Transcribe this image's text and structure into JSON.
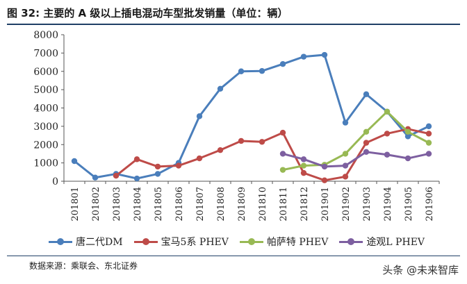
{
  "figure": {
    "title": "图  32:  主要的 A 级以上插电混动车型批发销量（单位：辆）",
    "source": "数据来源：乘联会、东北证券",
    "watermark": "头条 @未来智库"
  },
  "chart_data": {
    "type": "line",
    "xlabel": "",
    "ylabel": "",
    "ylim": [
      0,
      8000
    ],
    "yticks": [
      0,
      1000,
      2000,
      3000,
      4000,
      5000,
      6000,
      7000,
      8000
    ],
    "grid": false,
    "legend_position": "bottom",
    "categories": [
      "201801",
      "201802",
      "201803",
      "201804",
      "201805",
      "201806",
      "201807",
      "201808",
      "201809",
      "201810",
      "201811",
      "201812",
      "201901",
      "201902",
      "201903",
      "201904",
      "201905",
      "201906"
    ],
    "series": [
      {
        "name": "唐二代DM",
        "color": "#4a7ebb",
        "values": [
          1100,
          200,
          400,
          150,
          400,
          1000,
          3550,
          5050,
          6000,
          6020,
          6400,
          6800,
          6900,
          3200,
          4750,
          3800,
          2450,
          3000
        ]
      },
      {
        "name": "宝马5系 PHEV",
        "color": "#be4b48",
        "values": [
          null,
          null,
          300,
          1200,
          800,
          850,
          1250,
          1700,
          2200,
          2150,
          2650,
          450,
          50,
          250,
          2100,
          2600,
          2850,
          2600
        ]
      },
      {
        "name": "帕萨特 PHEV",
        "color": "#98b954",
        "values": [
          null,
          null,
          null,
          null,
          null,
          null,
          null,
          null,
          null,
          null,
          620,
          850,
          900,
          1500,
          2700,
          3800,
          2700,
          2100
        ]
      },
      {
        "name": "途观L PHEV",
        "color": "#7d5fa0",
        "values": [
          null,
          null,
          null,
          null,
          null,
          null,
          null,
          null,
          null,
          null,
          1500,
          1200,
          800,
          850,
          1600,
          1450,
          1250,
          1500
        ]
      }
    ]
  }
}
